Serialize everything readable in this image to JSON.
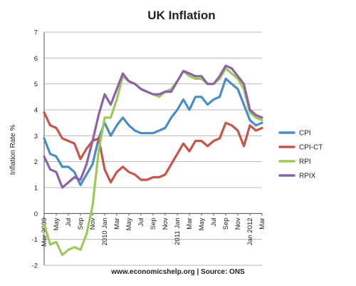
{
  "chart_data": {
    "type": "line",
    "title": "UK Inflation",
    "ylabel": "Inflation Rate %",
    "xlabel": "",
    "footer": "www.economicshelp.org | Source: ONS",
    "ylim": [
      -2,
      7
    ],
    "yticks": [
      -2,
      -1,
      0,
      1,
      2,
      3,
      4,
      5,
      6,
      7
    ],
    "grid": true,
    "legend_position": "right",
    "x": [
      "Mar 2009",
      "Apr",
      "May",
      "Jun",
      "Jul",
      "Aug",
      "Sep",
      "Oct",
      "Nov",
      "Dec",
      "2010 Jan",
      "Feb",
      "Mar",
      "Apr",
      "May",
      "Jun",
      "Jul",
      "Aug",
      "Sep",
      "Oct",
      "Nov",
      "Dec",
      "2011 Jan",
      "Feb",
      "Mar",
      "Apr",
      "May",
      "Jun",
      "Jul",
      "Aug",
      "Sep",
      "Oct",
      "Nov",
      "Dec",
      "Jan 2012",
      "Feb",
      "Mar"
    ],
    "xtick_labels": [
      {
        "i": 0,
        "label": "Mar 2009"
      },
      {
        "i": 2,
        "label": "May"
      },
      {
        "i": 4,
        "label": "Jul"
      },
      {
        "i": 6,
        "label": "Sep"
      },
      {
        "i": 8,
        "label": "Nov"
      },
      {
        "i": 10,
        "label": "2010 Jan"
      },
      {
        "i": 12,
        "label": "Mar"
      },
      {
        "i": 14,
        "label": "May"
      },
      {
        "i": 16,
        "label": "Jul"
      },
      {
        "i": 18,
        "label": "Sep"
      },
      {
        "i": 20,
        "label": "Nov"
      },
      {
        "i": 22,
        "label": "2011 Jan"
      },
      {
        "i": 24,
        "label": "Mar"
      },
      {
        "i": 26,
        "label": "May"
      },
      {
        "i": 28,
        "label": "Jul"
      },
      {
        "i": 30,
        "label": "Sep"
      },
      {
        "i": 32,
        "label": "Nov"
      },
      {
        "i": 34,
        "label": "Jan 2012"
      },
      {
        "i": 36,
        "label": "Mar"
      }
    ],
    "series": [
      {
        "name": "CPI",
        "color": "#4a8cc7",
        "values": [
          2.9,
          2.3,
          2.2,
          1.8,
          1.8,
          1.6,
          1.1,
          1.5,
          1.9,
          2.9,
          3.5,
          3.0,
          3.4,
          3.7,
          3.4,
          3.2,
          3.1,
          3.1,
          3.1,
          3.2,
          3.3,
          3.7,
          4.0,
          4.4,
          4.0,
          4.5,
          4.5,
          4.2,
          4.4,
          4.5,
          5.2,
          5.0,
          4.8,
          4.2,
          3.6,
          3.4,
          3.5
        ]
      },
      {
        "name": "CPI-CT",
        "color": "#c9544a",
        "values": [
          3.9,
          3.4,
          3.3,
          2.9,
          2.8,
          2.7,
          2.1,
          2.5,
          2.8,
          2.9,
          1.7,
          1.2,
          1.6,
          1.8,
          1.6,
          1.5,
          1.3,
          1.3,
          1.4,
          1.4,
          1.5,
          1.9,
          2.3,
          2.7,
          2.4,
          2.8,
          2.8,
          2.6,
          2.8,
          2.9,
          3.5,
          3.4,
          3.2,
          2.6,
          3.4,
          3.2,
          3.3
        ]
      },
      {
        "name": "RPI",
        "color": "#9dc95a",
        "values": [
          -0.4,
          -1.2,
          -1.1,
          -1.6,
          -1.4,
          -1.3,
          -1.4,
          -0.8,
          0.3,
          2.4,
          3.7,
          3.7,
          4.4,
          5.3,
          5.1,
          5.0,
          4.8,
          4.7,
          4.6,
          4.5,
          4.7,
          4.8,
          5.1,
          5.5,
          5.3,
          5.2,
          5.2,
          5.0,
          5.0,
          5.2,
          5.6,
          5.4,
          5.2,
          4.8,
          3.9,
          3.7,
          3.6
        ]
      },
      {
        "name": "RPIX",
        "color": "#8c62a8",
        "values": [
          2.2,
          1.7,
          1.6,
          1.0,
          1.2,
          1.4,
          1.3,
          1.9,
          2.8,
          3.8,
          4.6,
          4.2,
          4.8,
          5.4,
          5.1,
          5.0,
          4.8,
          4.7,
          4.6,
          4.6,
          4.7,
          4.7,
          5.1,
          5.5,
          5.4,
          5.3,
          5.3,
          5.0,
          5.0,
          5.3,
          5.7,
          5.6,
          5.3,
          5.0,
          4.0,
          3.8,
          3.7
        ]
      }
    ]
  }
}
